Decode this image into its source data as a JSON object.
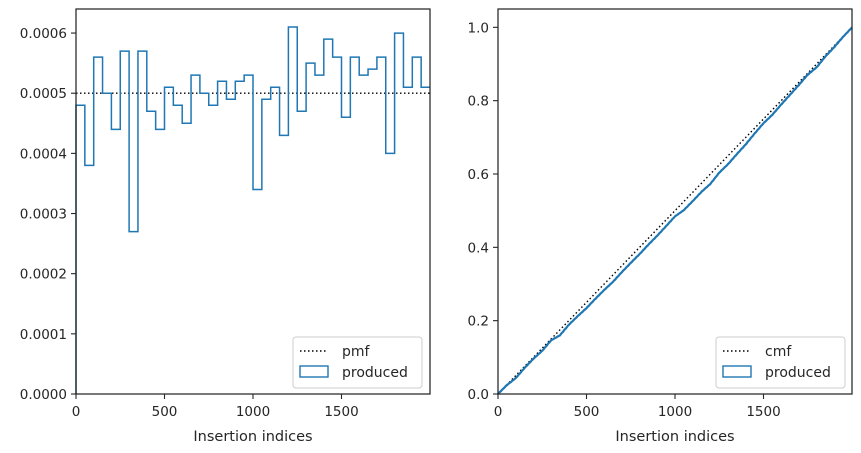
{
  "chart_data": [
    {
      "type": "histogram-step",
      "xlabel": "Insertion indices",
      "ylabel": "",
      "xlim": [
        0,
        2000
      ],
      "ylim": [
        0,
        0.00064
      ],
      "xticks": [
        "0",
        "500",
        "1000",
        "1500"
      ],
      "yticks": [
        "0.0000",
        "0.0001",
        "0.0002",
        "0.0003",
        "0.0004",
        "0.0005",
        "0.0006"
      ],
      "grid": false,
      "legend_position": "lower-right",
      "series": [
        {
          "name": "pmf",
          "style": "dotted",
          "color": "#000000",
          "value": 0.0005
        },
        {
          "name": "produced",
          "style": "step",
          "color": "#1f77b4",
          "bin_width": 50,
          "bin_start": 0,
          "values": [
            0.00048,
            0.00038,
            0.00056,
            0.0005,
            0.00044,
            0.00057,
            0.00027,
            0.00057,
            0.00047,
            0.00044,
            0.00051,
            0.00048,
            0.00045,
            0.00053,
            0.0005,
            0.00048,
            0.00052,
            0.00049,
            0.00052,
            0.00053,
            0.00034,
            0.00049,
            0.00051,
            0.00043,
            0.00061,
            0.00047,
            0.00055,
            0.00053,
            0.00059,
            0.00056,
            0.00046,
            0.00056,
            0.00053,
            0.00054,
            0.00056,
            0.0004,
            0.0006,
            0.00051,
            0.00056,
            0.00051
          ]
        }
      ]
    },
    {
      "type": "line",
      "xlabel": "Insertion indices",
      "ylabel": "",
      "xlim": [
        0,
        2000
      ],
      "ylim": [
        0,
        1.05
      ],
      "xticks": [
        "0",
        "500",
        "1000",
        "1500"
      ],
      "yticks": [
        "0.0",
        "0.2",
        "0.4",
        "0.6",
        "0.8",
        "1.0"
      ],
      "grid": false,
      "legend_position": "lower-right",
      "series": [
        {
          "name": "cmf",
          "style": "dotted",
          "color": "#000000",
          "x": [
            0,
            2000
          ],
          "y": [
            0,
            1.0
          ]
        },
        {
          "name": "produced",
          "style": "line",
          "color": "#1f77b4",
          "note_source": "cumulative of left-panel bins"
        }
      ]
    }
  ]
}
